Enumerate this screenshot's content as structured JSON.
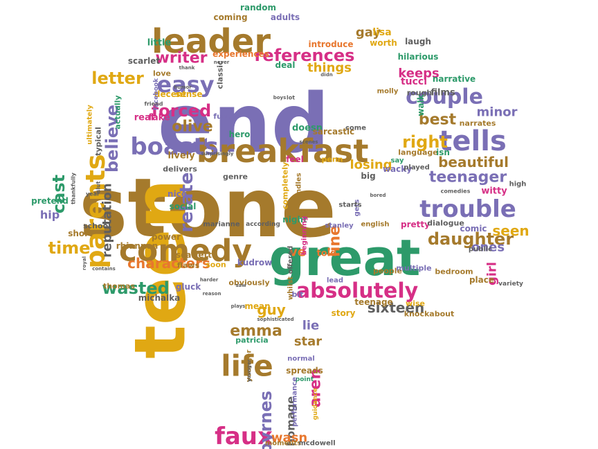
{
  "cloud": {
    "palette": {
      "gold": "#e0a813",
      "brown": "#a57a2c",
      "purple": "#7a6fb5",
      "green": "#2d9a6a",
      "pink": "#d62f86",
      "orange": "#e8772e",
      "grey": "#5f5f5f"
    },
    "words": [
      {
        "text": "end",
        "color": "#7a6fb5"
      },
      {
        "text": "stone",
        "color": "#a57a2c"
      },
      {
        "text": "teen",
        "color": "#e0a813"
      },
      {
        "text": "great",
        "color": "#2d9a6a"
      },
      {
        "text": "leader",
        "color": "#a57a2c"
      },
      {
        "text": "breakfast",
        "color": "#a57a2c"
      },
      {
        "text": "comedy",
        "color": "#a57a2c"
      },
      {
        "text": "absolutely",
        "color": "#d62f86"
      },
      {
        "text": "tells",
        "color": "#7a6fb5"
      },
      {
        "text": "trouble",
        "color": "#7a6fb5"
      },
      {
        "text": "couple",
        "color": "#7a6fb5"
      },
      {
        "text": "boasts",
        "color": "#7a6fb5"
      },
      {
        "text": "parents",
        "color": "#e0a813"
      },
      {
        "text": "life",
        "color": "#a57a2c"
      },
      {
        "text": "faux",
        "color": "#d62f86"
      },
      {
        "text": "easy",
        "color": "#7a6fb5"
      },
      {
        "text": "references",
        "color": "#d62f86"
      },
      {
        "text": "wasted",
        "color": "#2d9a6a"
      },
      {
        "text": "writer",
        "color": "#d62f86"
      },
      {
        "text": "forced",
        "color": "#d62f86"
      },
      {
        "text": "letter",
        "color": "#e0a813"
      },
      {
        "text": "relate",
        "color": "#7a6fb5"
      },
      {
        "text": "right",
        "color": "#e0a813"
      },
      {
        "text": "teenager",
        "color": "#7a6fb5"
      },
      {
        "text": "daughter",
        "color": "#a57a2c"
      },
      {
        "text": "characters",
        "color": "#e8772e"
      },
      {
        "text": "sixteen",
        "color": "#5f5f5f"
      },
      {
        "text": "byrnes",
        "color": "#7a6fb5"
      },
      {
        "text": "emma",
        "color": "#a57a2c"
      },
      {
        "text": "cast",
        "color": "#2d9a6a"
      },
      {
        "text": "believe",
        "color": "#7a6fb5"
      },
      {
        "text": "reputation",
        "color": "#5f5f5f"
      },
      {
        "text": "time",
        "color": "#e0a813"
      },
      {
        "text": "olive",
        "color": "#a57a2c"
      },
      {
        "text": "best",
        "color": "#a57a2c"
      },
      {
        "text": "beautiful",
        "color": "#a57a2c"
      },
      {
        "text": "keeps",
        "color": "#d62f86"
      },
      {
        "text": "things",
        "color": "#e0a813"
      },
      {
        "text": "losing",
        "color": "#e0a813"
      },
      {
        "text": "line",
        "color": "#e8772e"
      },
      {
        "text": "guy",
        "color": "#e0a813"
      },
      {
        "text": "lie",
        "color": "#7a6fb5"
      },
      {
        "text": "star",
        "color": "#a57a2c"
      },
      {
        "text": "homage",
        "color": "#5f5f5f"
      },
      {
        "text": "aren",
        "color": "#d62f86"
      },
      {
        "text": "wasn",
        "color": "#e8772e"
      },
      {
        "text": "seen",
        "color": "#e0a813"
      },
      {
        "text": "ones",
        "color": "#7a6fb5"
      },
      {
        "text": "girl",
        "color": "#d62f86"
      },
      {
        "text": "minor",
        "color": "#7a6fb5"
      },
      {
        "text": "gay",
        "color": "#a57a2c"
      },
      {
        "text": "lisa",
        "color": "#e0a813"
      },
      {
        "text": "ve",
        "color": "#e8772e"
      },
      {
        "text": "coming",
        "color": "#a57a2c"
      },
      {
        "text": "random",
        "color": "#2d9a6a"
      },
      {
        "text": "adults",
        "color": "#7a6fb5"
      },
      {
        "text": "introduce",
        "color": "#e8772e"
      },
      {
        "text": "worth",
        "color": "#e0a813"
      },
      {
        "text": "laugh",
        "color": "#5f5f5f"
      },
      {
        "text": "little",
        "color": "#2d9a6a"
      },
      {
        "text": "scarlet",
        "color": "#5f5f5f"
      },
      {
        "text": "experiences",
        "color": "#e8772e"
      },
      {
        "text": "deal",
        "color": "#2d9a6a"
      },
      {
        "text": "hilarious",
        "color": "#2d9a6a"
      },
      {
        "text": "narrative",
        "color": "#2d9a6a"
      },
      {
        "text": "tucci",
        "color": "#d62f86"
      },
      {
        "text": "films",
        "color": "#5f5f5f"
      },
      {
        "text": "rough",
        "color": "#5f5f5f"
      },
      {
        "text": "molly",
        "color": "#a57a2c"
      },
      {
        "text": "walk",
        "color": "#2d9a6a"
      },
      {
        "text": "narrates",
        "color": "#a57a2c"
      },
      {
        "text": "love",
        "color": "#a57a2c"
      },
      {
        "text": "classic",
        "color": "#5f5f5f"
      },
      {
        "text": "actually",
        "color": "#2d9a6a"
      },
      {
        "text": "decent",
        "color": "#e0a813"
      },
      {
        "text": "sense",
        "color": "#e0a813"
      },
      {
        "text": "facebook",
        "color": "#7a6fb5"
      },
      {
        "text": "real",
        "color": "#d62f86"
      },
      {
        "text": "fake",
        "color": "#d62f86"
      },
      {
        "text": "funny",
        "color": "#7a6fb5"
      },
      {
        "text": "ultimately",
        "color": "#e0a813"
      },
      {
        "text": "typical",
        "color": "#5f5f5f"
      },
      {
        "text": "hero",
        "color": "#2d9a6a"
      },
      {
        "text": "doesn",
        "color": "#2d9a6a"
      },
      {
        "text": "sarcastic",
        "color": "#a57a2c"
      },
      {
        "text": "come",
        "color": "#5f5f5f"
      },
      {
        "text": "feel",
        "color": "#d62f86"
      },
      {
        "text": "penn",
        "color": "#e0a813"
      },
      {
        "text": "say",
        "color": "#2d9a6a"
      },
      {
        "text": "wacky",
        "color": "#7a6fb5"
      },
      {
        "text": "played",
        "color": "#5f5f5f"
      },
      {
        "text": "language",
        "color": "#a57a2c"
      },
      {
        "text": "isn",
        "color": "#2d9a6a"
      },
      {
        "text": "lively",
        "color": "#a57a2c"
      },
      {
        "text": "delivers",
        "color": "#5f5f5f"
      },
      {
        "text": "genre",
        "color": "#5f5f5f"
      },
      {
        "text": "big",
        "color": "#5f5f5f"
      },
      {
        "text": "witty",
        "color": "#d62f86"
      },
      {
        "text": "high",
        "color": "#5f5f5f"
      },
      {
        "text": "pretend",
        "color": "#2d9a6a"
      },
      {
        "text": "hip",
        "color": "#7a6fb5"
      },
      {
        "text": "nice",
        "color": "#7a6fb5"
      },
      {
        "text": "social",
        "color": "#2d9a6a"
      },
      {
        "text": "school",
        "color": "#5f5f5f"
      },
      {
        "text": "marianne",
        "color": "#5f5f5f"
      },
      {
        "text": "according",
        "color": "#5f5f5f"
      },
      {
        "text": "night",
        "color": "#2d9a6a"
      },
      {
        "text": "stanley",
        "color": "#7a6fb5"
      },
      {
        "text": "english",
        "color": "#a57a2c"
      },
      {
        "text": "pretty",
        "color": "#d62f86"
      },
      {
        "text": "dialogue",
        "color": "#5f5f5f"
      },
      {
        "text": "comic",
        "color": "#7a6fb5"
      },
      {
        "text": "public",
        "color": "#5f5f5f"
      },
      {
        "text": "short",
        "color": "#a57a2c"
      },
      {
        "text": "power",
        "color": "#a57a2c"
      },
      {
        "text": "rhiannon",
        "color": "#a57a2c"
      },
      {
        "text": "scarlett",
        "color": "#a57a2c"
      },
      {
        "text": "flaws",
        "color": "#a57a2c"
      },
      {
        "text": "soon",
        "color": "#e0a813"
      },
      {
        "text": "kudrow",
        "color": "#7a6fb5"
      },
      {
        "text": "offered",
        "color": "#5f5f5f"
      },
      {
        "text": "told",
        "color": "#e8772e"
      },
      {
        "text": "people",
        "color": "#a57a2c"
      },
      {
        "text": "multiple",
        "color": "#7a6fb5"
      },
      {
        "text": "bedroom",
        "color": "#a57a2c"
      },
      {
        "text": "place",
        "color": "#a57a2c"
      },
      {
        "text": "thomas",
        "color": "#a57a2c"
      },
      {
        "text": "michalka",
        "color": "#5f5f5f"
      },
      {
        "text": "gluck",
        "color": "#7a6fb5"
      },
      {
        "text": "obviously",
        "color": "#a57a2c"
      },
      {
        "text": "mean",
        "color": "#e0a813"
      },
      {
        "text": "whilst",
        "color": "#a57a2c"
      },
      {
        "text": "lead",
        "color": "#7a6fb5"
      },
      {
        "text": "bit",
        "color": "#7a6fb5"
      },
      {
        "text": "story",
        "color": "#e0a813"
      },
      {
        "text": "teenage",
        "color": "#a57a2c"
      },
      {
        "text": "wise",
        "color": "#e0a813"
      },
      {
        "text": "knockabout",
        "color": "#a57a2c"
      },
      {
        "text": "patricia",
        "color": "#2d9a6a"
      },
      {
        "text": "normal",
        "color": "#7a6fb5"
      },
      {
        "text": "younger",
        "color": "#a57a2c"
      },
      {
        "text": "spreads",
        "color": "#a57a2c"
      },
      {
        "text": "point",
        "color": "#2d9a6a"
      },
      {
        "text": "performance",
        "color": "#7a6fb5"
      },
      {
        "text": "guidance",
        "color": "#e0a813"
      },
      {
        "text": "moments",
        "color": "#a57a2c"
      },
      {
        "text": "mcdowell",
        "color": "#5f5f5f"
      },
      {
        "text": "beginning",
        "color": "#d62f86"
      },
      {
        "text": "completely",
        "color": "#e0a813"
      },
      {
        "text": "candles",
        "color": "#a57a2c"
      },
      {
        "text": "gets",
        "color": "#7a6fb5"
      },
      {
        "text": "starts",
        "color": "#5f5f5f"
      },
      {
        "text": "variety",
        "color": "#5f5f5f"
      },
      {
        "text": "comedies",
        "color": "#5f5f5f"
      },
      {
        "text": "year",
        "color": "#5f5f5f"
      },
      {
        "text": "friend",
        "color": "#5f5f5f"
      },
      {
        "text": "thank",
        "color": "#5f5f5f"
      },
      {
        "text": "never",
        "color": "#5f5f5f"
      },
      {
        "text": "didn",
        "color": "#5f5f5f"
      },
      {
        "text": "boys",
        "color": "#5f5f5f"
      },
      {
        "text": "lot",
        "color": "#5f5f5f"
      },
      {
        "text": "surprisingly",
        "color": "#5f5f5f"
      },
      {
        "text": "slut",
        "color": "#5f5f5f"
      },
      {
        "text": "thankfully",
        "color": "#5f5f5f"
      },
      {
        "text": "royal",
        "color": "#5f5f5f"
      },
      {
        "text": "contains",
        "color": "#5f5f5f"
      },
      {
        "text": "harder",
        "color": "#5f5f5f"
      },
      {
        "text": "reason",
        "color": "#5f5f5f"
      },
      {
        "text": "plays",
        "color": "#5f5f5f"
      },
      {
        "text": "saw",
        "color": "#5f5f5f"
      },
      {
        "text": "sophisticated",
        "color": "#5f5f5f"
      },
      {
        "text": "younger",
        "color": "#5f5f5f"
      },
      {
        "text": "bored",
        "color": "#5f5f5f"
      },
      {
        "text": "humor",
        "color": "#5f5f5f"
      },
      {
        "text": "scenes",
        "color": "#5f5f5f"
      }
    ]
  }
}
